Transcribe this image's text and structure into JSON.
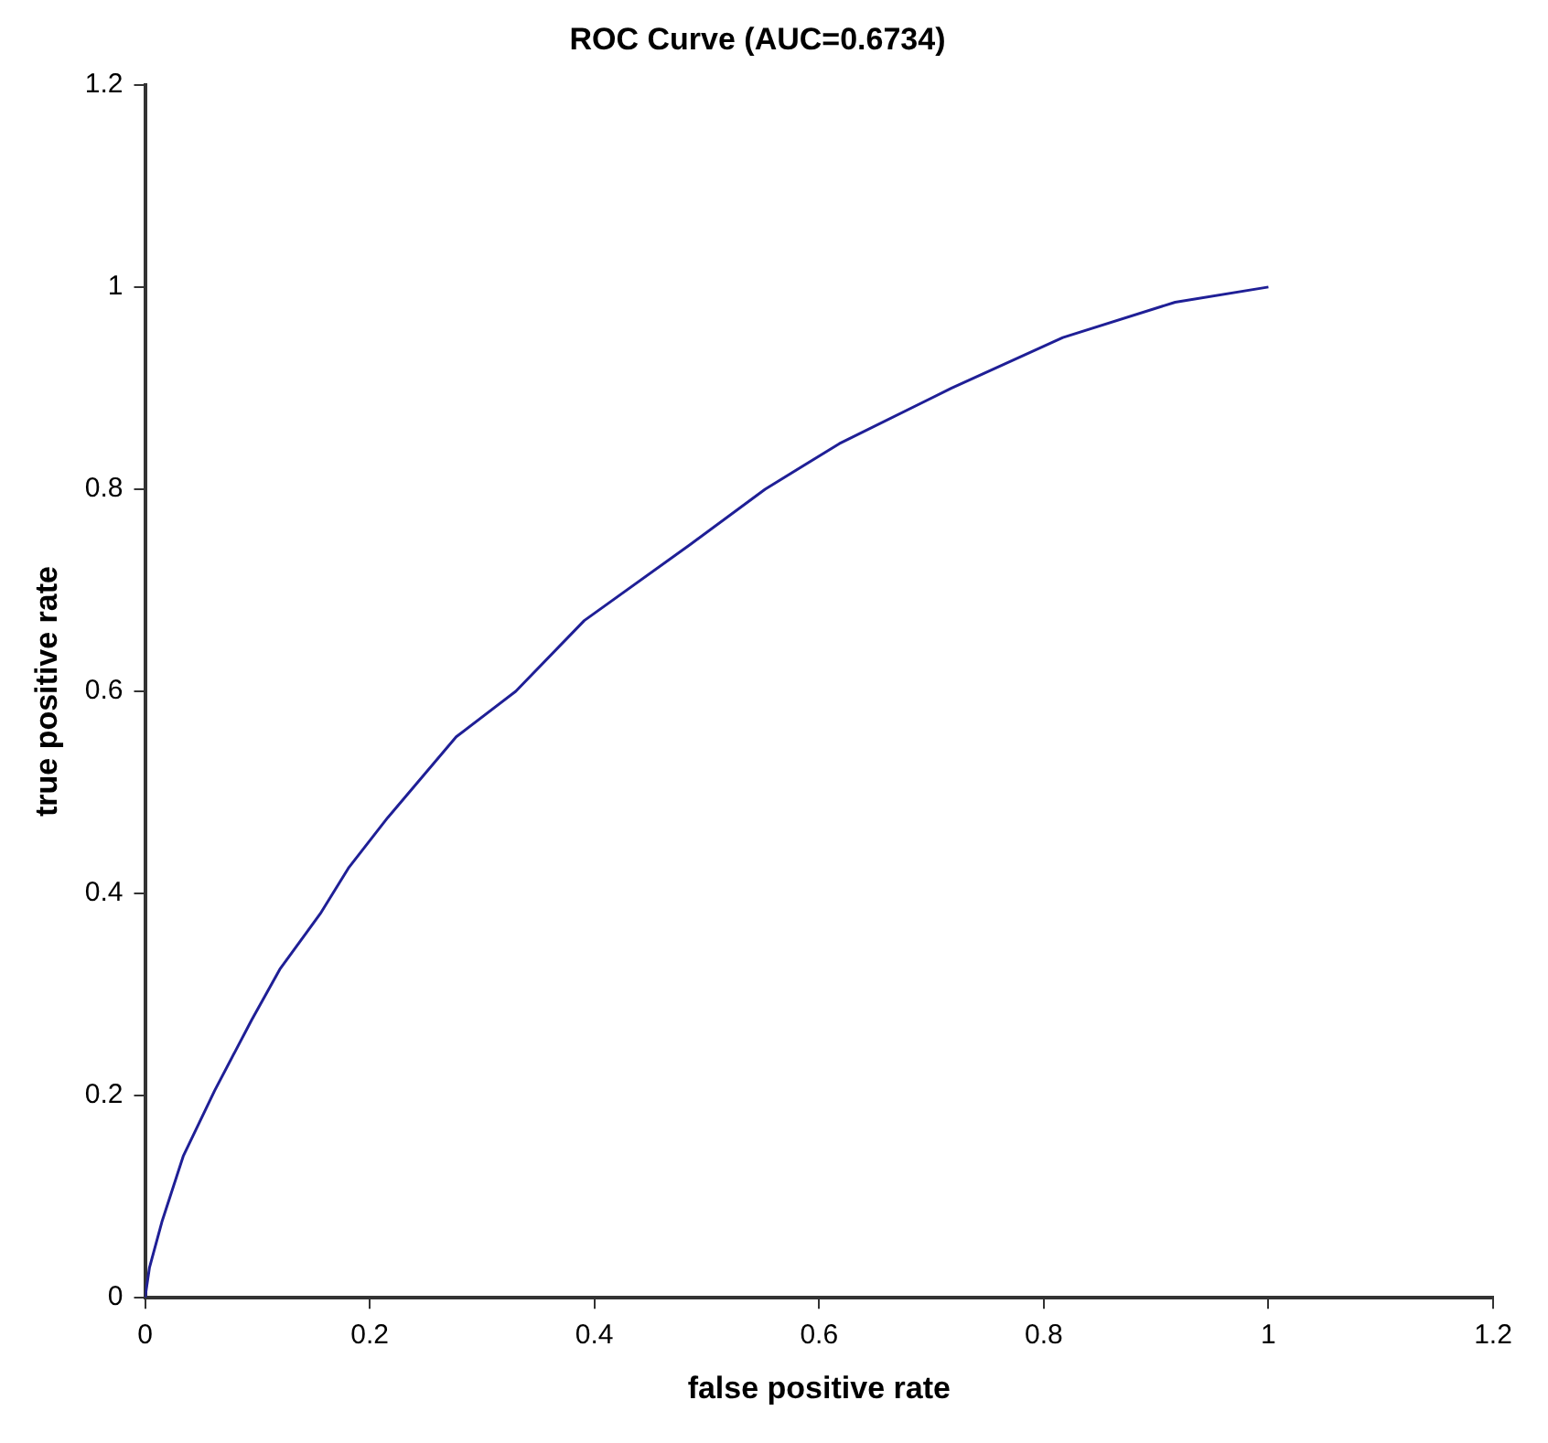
{
  "chart_data": {
    "type": "line",
    "title": "ROC Curve (AUC=0.6734)",
    "xlabel": "false positive rate",
    "ylabel": "true positive rate",
    "series": [
      {
        "color": "#1f1f96",
        "x": [
          0,
          0.004,
          0.015,
          0.034,
          0.062,
          0.095,
          0.12,
          0.156,
          0.181,
          0.216,
          0.277,
          0.33,
          0.391,
          0.485,
          0.552,
          0.618,
          0.718,
          0.817,
          0.917,
          1
        ],
        "values": [
          0,
          0.03,
          0.075,
          0.14,
          0.205,
          0.275,
          0.325,
          0.38,
          0.425,
          0.475,
          0.555,
          0.6,
          0.67,
          0.745,
          0.8,
          0.845,
          0.9,
          0.95,
          0.985,
          1
        ]
      }
    ],
    "xlim": [
      0,
      1.2
    ],
    "ylim": [
      0,
      1.2
    ],
    "xticks": [
      0,
      {
        "value": 0.2,
        "label": "0.2"
      },
      {
        "value": 0.4,
        "label": "0.4"
      },
      {
        "value": 0.6,
        "label": "0.6"
      },
      {
        "value": 0.8,
        "label": "0.8"
      },
      1,
      {
        "value": 1.2,
        "label": "1.2"
      }
    ],
    "yticks": [
      0,
      {
        "value": 0.2,
        "label": "0.2"
      },
      {
        "value": 0.4,
        "label": "0.4"
      },
      {
        "value": 0.6,
        "label": "0.6"
      },
      {
        "value": 0.8,
        "label": "0.8"
      },
      1,
      {
        "value": 1.2,
        "label": "1.2"
      }
    ],
    "grid": false,
    "legend": false,
    "marker": "none",
    "line_style": "solid"
  }
}
